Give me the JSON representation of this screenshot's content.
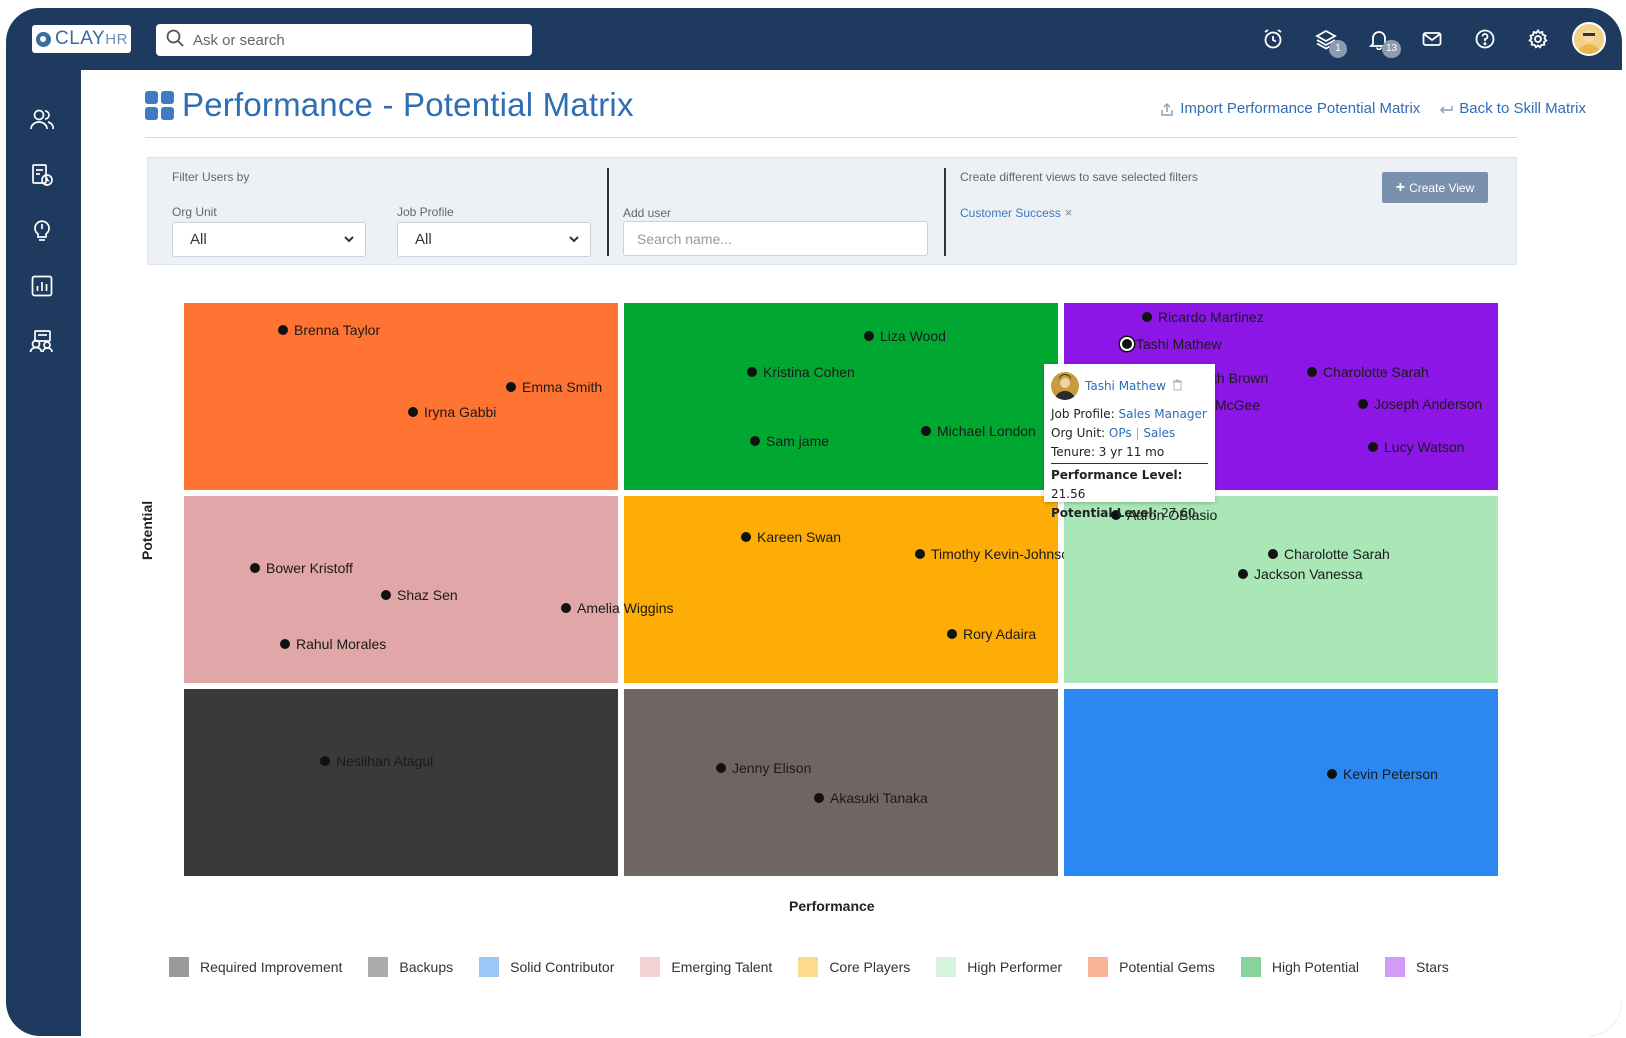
{
  "app": {
    "logo": "CLAY",
    "logo_suffix": "HR"
  },
  "search": {
    "placeholder": "Ask or search"
  },
  "topbar": {
    "icons": [
      "alarm-icon",
      "layers-icon",
      "bell-icon",
      "mail-icon",
      "help-icon",
      "gear-icon",
      "avatar"
    ],
    "layers_badge": "1",
    "bell_badge": "13"
  },
  "sidebar": {
    "icons": [
      "people-icon",
      "document-clock-icon",
      "lightbulb-icon",
      "report-chart-icon",
      "team-icon"
    ]
  },
  "page": {
    "title": "Performance - Potential Matrix",
    "import_label": "Import Performance Potential Matrix",
    "back_label": "Back to Skill Matrix"
  },
  "filters": {
    "heading": "Filter Users by",
    "org_unit_label": "Org Unit",
    "org_unit_value": "All",
    "job_profile_label": "Job Profile",
    "job_profile_value": "All",
    "add_user_label": "Add user",
    "add_user_placeholder": "Search name...",
    "views_hint": "Create different views to save selected filters",
    "saved_view": "Customer Success",
    "create_view_label": "Create View"
  },
  "axes": {
    "y": "Potential",
    "x": "Performance"
  },
  "matrix": {
    "colors": {
      "top_left": "#ff7433",
      "top_mid": "#00a832",
      "top_right": "#8c16e6",
      "mid_left": "#e1a6a8",
      "mid_mid": "#fdad06",
      "mid_right": "#a9e8b6",
      "bot_left": "#3a3a3a",
      "bot_mid": "#6f6664",
      "bot_right": "#2b88f3"
    },
    "people": {
      "brenna": "Brenna Taylor",
      "emma": "Emma Smith",
      "iryna": "Iryna Gabbi",
      "liza": "Liza Wood",
      "kristina": "Kristina Cohen",
      "sam": "Sam jame",
      "michael": "Michael London",
      "ricardo": "Ricardo Martinez",
      "tashi": "Tashi Mathew",
      "brown": "th Brown",
      "mcgee": "McGee",
      "charlotte_top": "Charolotte Sarah",
      "joseph": "Joseph Anderson",
      "lucy": "Lucy Watson",
      "bower": "Bower Kristoff",
      "shaz": "Shaz Sen",
      "rahul": "Rahul Morales",
      "amelia": "Amelia Wiggins",
      "kareen": "Kareen Swan",
      "timothy": "Timothy Kevin-Johnson",
      "rory": "Rory Adaira",
      "aaron": "Aaron OBlasio",
      "charlotte_mid": "Charolotte Sarah",
      "jackson": "Jackson Vanessa",
      "neslihan": "Neslihan Atagul",
      "jenny": "Jenny Elison",
      "akasuki": "Akasuki Tanaka",
      "kevin": "Kevin Peterson"
    }
  },
  "tooltip": {
    "name": "Tashi Mathew",
    "job_profile_label": "Job Profile:",
    "job_profile": "Sales Manager",
    "org_unit_label": "Org Unit:",
    "org_unit_a": "OPs",
    "org_unit_sep": "|",
    "org_unit_b": "Sales",
    "tenure": "Tenure: 3 yr 11 mo",
    "performance_label": "Performance Level:",
    "performance_value": "21.56",
    "potential_label": "Potential Level:",
    "potential_value": "27.60"
  },
  "legend": [
    {
      "label": "Required Improvement",
      "color": "#9a9a9a"
    },
    {
      "label": "Backups",
      "color": "#ababab"
    },
    {
      "label": "Solid Contributor",
      "color": "#9cc6f5"
    },
    {
      "label": "Emerging Talent",
      "color": "#f3d2d3"
    },
    {
      "label": "Core Players",
      "color": "#fddb8e"
    },
    {
      "label": "High Performer",
      "color": "#d6f3dc"
    },
    {
      "label": "Potential Gems",
      "color": "#f9b495"
    },
    {
      "label": "High Potential",
      "color": "#86d49b"
    },
    {
      "label": "Stars",
      "color": "#d39af7"
    }
  ]
}
